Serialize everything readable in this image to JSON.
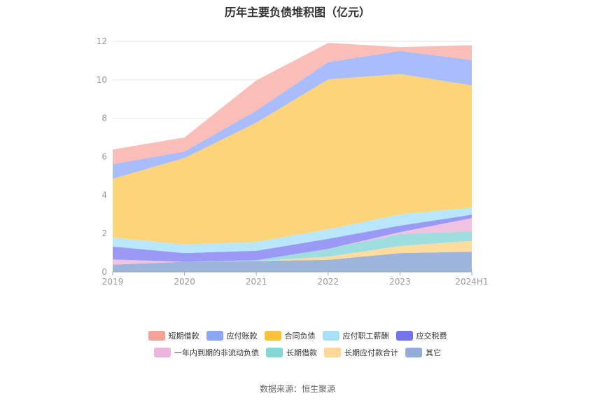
{
  "chart_data": {
    "type": "area",
    "stacked": true,
    "title": "历年主要负债堆积图（亿元）",
    "categories": [
      "2019",
      "2020",
      "2021",
      "2022",
      "2023",
      "2024H1"
    ],
    "ylim": [
      0,
      12
    ],
    "yticks": [
      "0",
      "2",
      "4",
      "6",
      "8",
      "10",
      "12"
    ],
    "grid": true,
    "legend_position": "bottom",
    "series": [
      {
        "name": "其它",
        "color": "#9db4dc",
        "values": [
          0.38,
          0.53,
          0.57,
          0.63,
          0.98,
          1.05
        ]
      },
      {
        "name": "长期应付款合计",
        "color": "#fddc9e",
        "values": [
          0.0,
          0.0,
          0.0,
          0.17,
          0.37,
          0.57
        ]
      },
      {
        "name": "长期借款",
        "color": "#9fdede",
        "values": [
          0.0,
          0.0,
          0.04,
          0.4,
          0.62,
          0.5
        ]
      },
      {
        "name": "一年内到期的非流动负债",
        "color": "#f0c3e3",
        "values": [
          0.27,
          0.0,
          0.0,
          0.0,
          0.1,
          0.68
        ]
      },
      {
        "name": "应交税费",
        "color": "#9a9af6",
        "values": [
          0.67,
          0.45,
          0.49,
          0.52,
          0.34,
          0.18
        ]
      },
      {
        "name": "应付职工薪酬",
        "color": "#b8e6fb",
        "values": [
          0.47,
          0.45,
          0.47,
          0.5,
          0.59,
          0.38
        ]
      },
      {
        "name": "合同负债",
        "color": "#fdd479",
        "values": [
          3.06,
          4.5,
          6.2,
          7.8,
          7.3,
          6.35
        ]
      },
      {
        "name": "应付账款",
        "color": "#a9bcfb",
        "values": [
          0.76,
          0.34,
          0.63,
          0.9,
          1.2,
          1.32
        ]
      },
      {
        "name": "短期借款",
        "color": "#fbbdb7",
        "values": [
          0.76,
          0.73,
          1.57,
          1.0,
          0.2,
          0.77
        ]
      }
    ]
  },
  "legend_rows": [
    [
      {
        "label": "短期借款",
        "color": "#f6a199"
      },
      {
        "label": "应付账款",
        "color": "#8ba5f7"
      },
      {
        "label": "合同负债",
        "color": "#fbc13d"
      },
      {
        "label": "应付职工薪酬",
        "color": "#a6e0f9"
      },
      {
        "label": "应交税费",
        "color": "#7373ee"
      }
    ],
    [
      {
        "label": "一年内到期的非流动负债",
        "color": "#ebb5dc"
      },
      {
        "label": "长期借款",
        "color": "#86d6d6"
      },
      {
        "label": "长期应付款合计",
        "color": "#fdd69a"
      },
      {
        "label": "其它",
        "color": "#94acd8"
      }
    ]
  ],
  "source": "数据来源：恒生聚源"
}
